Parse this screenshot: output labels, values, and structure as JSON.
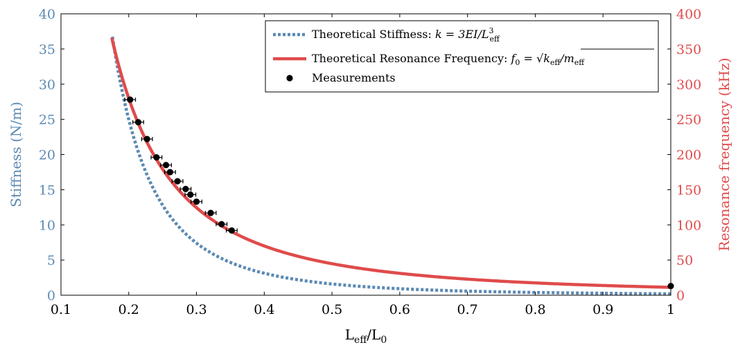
{
  "chart_data": {
    "type": "line",
    "xlabel": "L",
    "xlabel_sub1": "eff",
    "xlabel_mid": "/L",
    "xlabel_sub2": "0",
    "ylabel_left": "Stiffness (N/m)",
    "ylabel_right": "Resonance frequency (kHz)",
    "xlim": [
      0.1,
      1.0
    ],
    "ylim_left": [
      0,
      40
    ],
    "ylim_right": [
      0,
      400
    ],
    "x_ticks": [
      "0.1",
      "0.2",
      "0.3",
      "0.4",
      "0.5",
      "0.6",
      "0.7",
      "0.8",
      "0.9",
      "1"
    ],
    "y_left_ticks": [
      "0",
      "5",
      "10",
      "15",
      "20",
      "25",
      "30",
      "35",
      "40"
    ],
    "y_right_ticks": [
      "0",
      "50",
      "100",
      "150",
      "200",
      "250",
      "300",
      "350",
      "400"
    ],
    "grid": false,
    "legend_position": "top-right",
    "colors": {
      "stiffness": "#5b89b3",
      "frequency": "#e04b4b",
      "measurements": "#000000",
      "left_axis": "#5b89b3",
      "right_axis": "#e04b4b"
    },
    "series": [
      {
        "name": "Theoretical Stiffness: k = 3EI/L",
        "legend_label": "Theoretical Stiffness: ",
        "legend_formula": "k = 3EI/L",
        "legend_sub": "eff",
        "legend_sup": "3",
        "style": "dotted",
        "axis": "left",
        "model": "k = 0.2/x^3",
        "x_range": [
          0.1759,
          1.0
        ]
      },
      {
        "name": "Theoretical Resonance Frequency: f0 = sqrt(keff/meff)",
        "legend_label": "Theoretical Resonance Frequency: ",
        "legend_formula_a": "f",
        "legend_formula_a_sub": "0",
        "legend_formula_b": " = ",
        "legend_formula_c": "k",
        "legend_formula_c_sub": "eff",
        "legend_formula_d": "/m",
        "legend_formula_d_sub": "eff",
        "style": "solid",
        "axis": "right",
        "model": "f = 11.2/x^2",
        "x_range": [
          0.175,
          1.0
        ]
      },
      {
        "name": "Measurements",
        "legend_label": "Measurements",
        "style": "markers",
        "axis": "right",
        "x_error": 0.008,
        "points": [
          {
            "x": 0.202,
            "y": 278
          },
          {
            "x": 0.214,
            "y": 246
          },
          {
            "x": 0.227,
            "y": 222
          },
          {
            "x": 0.241,
            "y": 196
          },
          {
            "x": 0.255,
            "y": 185
          },
          {
            "x": 0.261,
            "y": 175
          },
          {
            "x": 0.272,
            "y": 162
          },
          {
            "x": 0.284,
            "y": 151
          },
          {
            "x": 0.291,
            "y": 143
          },
          {
            "x": 0.3,
            "y": 133
          },
          {
            "x": 0.321,
            "y": 117
          },
          {
            "x": 0.337,
            "y": 101
          },
          {
            "x": 0.352,
            "y": 92
          },
          {
            "x": 1.0,
            "y": 13
          }
        ]
      }
    ]
  }
}
